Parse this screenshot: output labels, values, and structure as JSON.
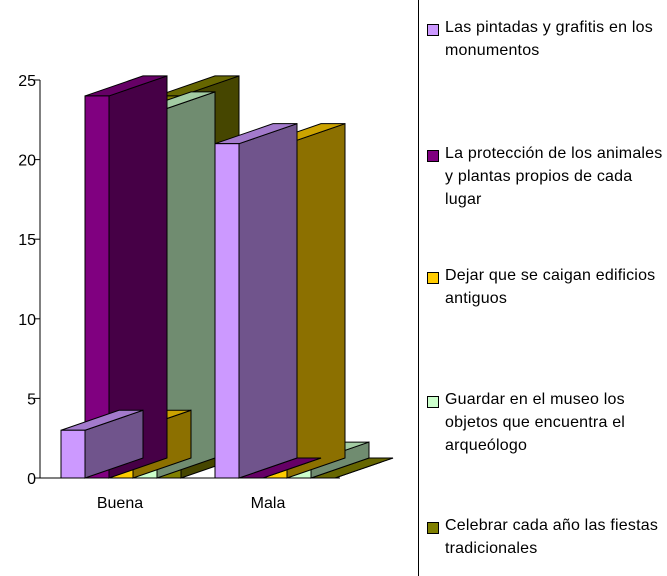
{
  "chart_data": {
    "type": "bar",
    "categories": [
      "Buena",
      "Mala"
    ],
    "ylim": [
      0,
      25
    ],
    "yticks": [
      "0",
      "5",
      "10",
      "15",
      "20",
      "25"
    ],
    "legend_position": "right",
    "series": [
      {
        "name": "Las pintadas y grafitis en los monumentos",
        "values": [
          3,
          21
        ],
        "color": "#CC99FF"
      },
      {
        "name": "La protección de los animales y plantas propios de cada lugar",
        "values": [
          24,
          0
        ],
        "color": "#800080"
      },
      {
        "name": "Dejar que se caigan edificios antiguos",
        "values": [
          3,
          21
        ],
        "color": "#FFCC00"
      },
      {
        "name": "Guardar en el museo los objetos que encuentra el arqueólogo",
        "values": [
          23,
          1
        ],
        "color": "#CCFFCC"
      },
      {
        "name": "Celebrar cada año las fiestas tradicionales",
        "values": [
          24,
          0
        ],
        "color": "#808000"
      }
    ]
  }
}
